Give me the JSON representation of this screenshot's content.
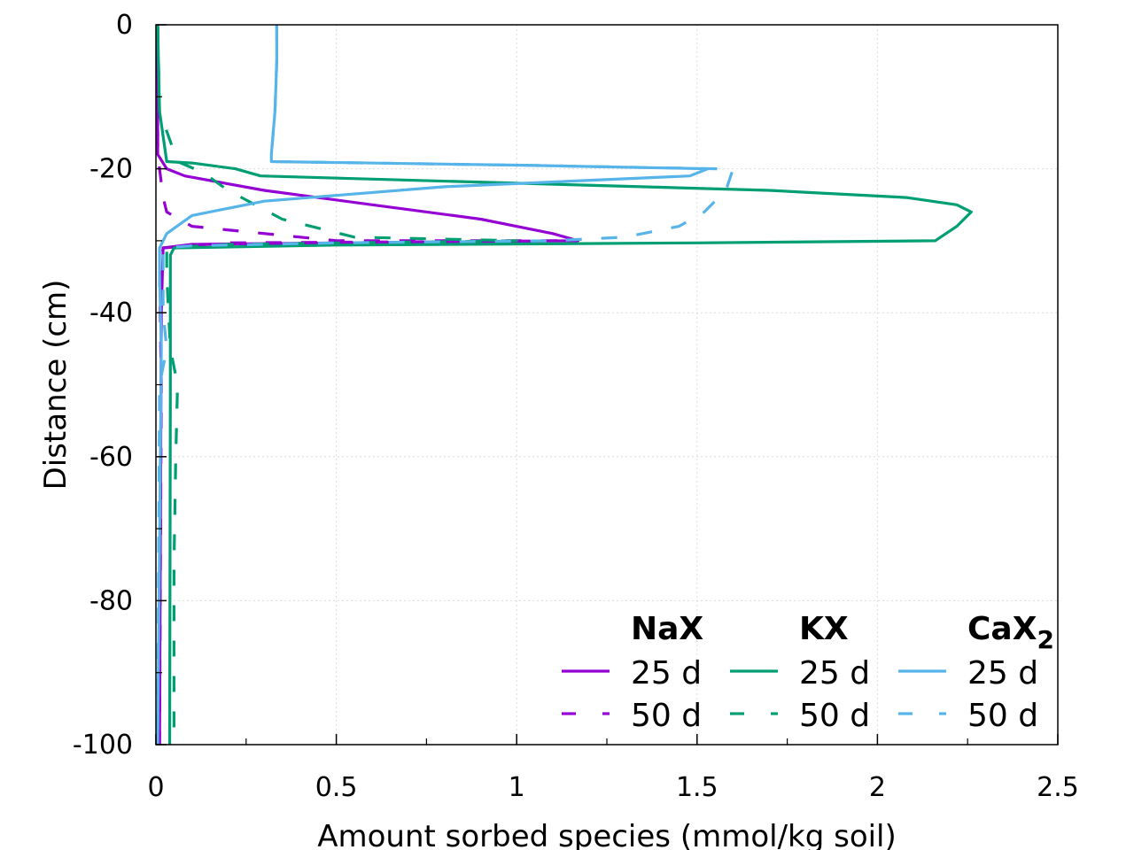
{
  "chart_data": {
    "type": "line",
    "title": "",
    "xlabel": "Amount sorbed species (mmol/kg soil)",
    "ylabel": "Distance (cm)",
    "xlim": [
      0,
      2.5
    ],
    "ylim": [
      -100,
      0
    ],
    "xticks": [
      "0",
      "0.5",
      "1",
      "1.5",
      "2",
      "2.5"
    ],
    "yticks": [
      "0",
      "-20",
      "-40",
      "-60",
      "-80",
      "-100"
    ],
    "grid": true,
    "legend_position": "bottom-right",
    "legend_groups": [
      {
        "name": "NaX",
        "name_main": "NaX",
        "name_sub": "",
        "color": "#9400d3"
      },
      {
        "name": "KX",
        "name_main": "KX",
        "name_sub": "",
        "color": "#009e73"
      },
      {
        "name": "CaX2",
        "name_main": "CaX",
        "name_sub": "2",
        "color": "#56b4e9"
      }
    ],
    "legend_labels": {
      "d25": "25 d",
      "d50": "50 d"
    },
    "series": [
      {
        "name": "NaX 25 d",
        "species": "NaX",
        "time": "25 d",
        "style": "solid",
        "color": "#9400d3",
        "points": [
          [
            0.005,
            0
          ],
          [
            0.005,
            -18
          ],
          [
            0.03,
            -20
          ],
          [
            0.08,
            -21
          ],
          [
            0.3,
            -23
          ],
          [
            0.6,
            -25
          ],
          [
            0.9,
            -27
          ],
          [
            1.1,
            -29
          ],
          [
            1.17,
            -30
          ],
          [
            0.5,
            -30.3
          ],
          [
            0.1,
            -30.5
          ],
          [
            0.02,
            -31
          ],
          [
            0.015,
            -40
          ],
          [
            0.01,
            -100
          ]
        ]
      },
      {
        "name": "NaX 50 d",
        "species": "NaX",
        "time": "50 d",
        "style": "dashed",
        "color": "#9400d3",
        "points": [
          [
            0.005,
            0
          ],
          [
            0.005,
            -18
          ],
          [
            0.01,
            -20
          ],
          [
            0.02,
            -24
          ],
          [
            0.03,
            -26
          ],
          [
            0.1,
            -28
          ],
          [
            0.5,
            -30
          ],
          [
            1.15,
            -30
          ],
          [
            0.2,
            -30.3
          ],
          [
            0.02,
            -31
          ],
          [
            0.01,
            -35
          ],
          [
            0.015,
            -50
          ],
          [
            0.01,
            -100
          ]
        ]
      },
      {
        "name": "KX 25 d",
        "species": "KX",
        "time": "25 d",
        "style": "solid",
        "color": "#009e73",
        "points": [
          [
            0.005,
            0
          ],
          [
            0.01,
            -12
          ],
          [
            0.03,
            -19
          ],
          [
            0.1,
            -19.2
          ],
          [
            0.22,
            -20
          ],
          [
            0.29,
            -21
          ],
          [
            1.0,
            -22
          ],
          [
            1.7,
            -23
          ],
          [
            2.08,
            -24
          ],
          [
            2.22,
            -25
          ],
          [
            2.26,
            -26
          ],
          [
            2.22,
            -28
          ],
          [
            2.16,
            -30
          ],
          [
            1.5,
            -30.3
          ],
          [
            0.5,
            -30.6
          ],
          [
            0.05,
            -31
          ],
          [
            0.04,
            -32
          ],
          [
            0.04,
            -40
          ],
          [
            0.04,
            -50
          ],
          [
            0.038,
            -100
          ]
        ]
      },
      {
        "name": "KX 50 d",
        "species": "KX",
        "time": "50 d",
        "style": "dashed",
        "color": "#009e73",
        "points": [
          [
            0.005,
            0
          ],
          [
            0.01,
            -12
          ],
          [
            0.06,
            -19
          ],
          [
            0.13,
            -20.5
          ],
          [
            0.2,
            -23
          ],
          [
            0.35,
            -27
          ],
          [
            0.55,
            -29.5
          ],
          [
            1.0,
            -30
          ],
          [
            0.2,
            -30.5
          ],
          [
            0.03,
            -31
          ],
          [
            0.03,
            -35
          ],
          [
            0.04,
            -45
          ],
          [
            0.06,
            -50
          ],
          [
            0.055,
            -60
          ],
          [
            0.05,
            -75
          ],
          [
            0.05,
            -100
          ]
        ]
      },
      {
        "name": "CaX2 25 d",
        "species": "CaX2",
        "time": "25 d",
        "style": "solid",
        "color": "#56b4e9",
        "points": [
          [
            0.335,
            0
          ],
          [
            0.335,
            -5
          ],
          [
            0.33,
            -12
          ],
          [
            0.32,
            -18
          ],
          [
            0.32,
            -19
          ],
          [
            1.0,
            -19.5
          ],
          [
            1.53,
            -20
          ],
          [
            1.48,
            -21
          ],
          [
            0.8,
            -22.5
          ],
          [
            0.3,
            -24.5
          ],
          [
            0.1,
            -26.5
          ],
          [
            0.03,
            -29
          ],
          [
            0.01,
            -31
          ],
          [
            0.01,
            -35
          ],
          [
            0.015,
            -45
          ],
          [
            0.005,
            -100
          ]
        ]
      },
      {
        "name": "CaX2 50 d",
        "species": "CaX2",
        "time": "50 d",
        "style": "dashed",
        "color": "#56b4e9",
        "points": [
          [
            0.335,
            0
          ],
          [
            0.335,
            -5
          ],
          [
            0.33,
            -12
          ],
          [
            0.32,
            -18
          ],
          [
            0.32,
            -19
          ],
          [
            1.0,
            -19.5
          ],
          [
            1.55,
            -20
          ],
          [
            1.6,
            -20
          ],
          [
            1.58,
            -23
          ],
          [
            1.52,
            -26
          ],
          [
            1.45,
            -28
          ],
          [
            1.3,
            -29.5
          ],
          [
            1.1,
            -30
          ],
          [
            0.5,
            -30.3
          ],
          [
            0.1,
            -30.7
          ],
          [
            0.02,
            -31
          ],
          [
            0.02,
            -40
          ],
          [
            0.03,
            -45
          ],
          [
            0.01,
            -50
          ],
          [
            0.005,
            -100
          ]
        ]
      }
    ]
  }
}
